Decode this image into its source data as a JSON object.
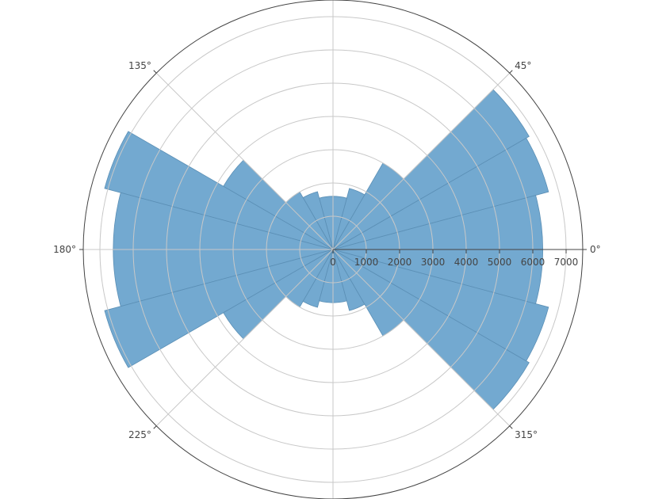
{
  "chart_data": {
    "type": "polar-bar",
    "title": "",
    "radial_axis": {
      "range": [
        0,
        7500
      ],
      "ticks": [
        0,
        1000,
        2000,
        3000,
        4000,
        5000,
        6000,
        7000
      ],
      "tick_labels": [
        "0",
        "1000",
        "2000",
        "3000",
        "4000",
        "5000",
        "6000",
        "7000"
      ]
    },
    "angular_axis": {
      "rotation": 0,
      "direction": "counterclockwise",
      "ticks": [
        0,
        45,
        90,
        135,
        180,
        225,
        270,
        315
      ],
      "tick_labels": [
        "0°",
        "45°",
        "",
        "135°",
        "180°",
        "225°",
        "",
        "315°"
      ]
    },
    "bars": {
      "width_deg": 15,
      "color": "#73a9d0",
      "edge_color": "#5b8fb5",
      "sector_centers": [
        7.5,
        22.5,
        37.5,
        52.5,
        67.5,
        82.5,
        97.5,
        112.5,
        127.5,
        142.5,
        157.5,
        172.5,
        187.5,
        202.5,
        217.5,
        232.5,
        247.5,
        262.5,
        277.5,
        292.5,
        307.5,
        322.5,
        337.5,
        352.5
      ],
      "values": [
        6300,
        6700,
        6800,
        3000,
        1900,
        1600,
        1600,
        1800,
        2000,
        3800,
        7100,
        6600,
        6600,
        7100,
        3800,
        2000,
        1800,
        1600,
        1600,
        1900,
        3000,
        6800,
        6700,
        6300
      ]
    },
    "grid": true,
    "legend": "none"
  }
}
